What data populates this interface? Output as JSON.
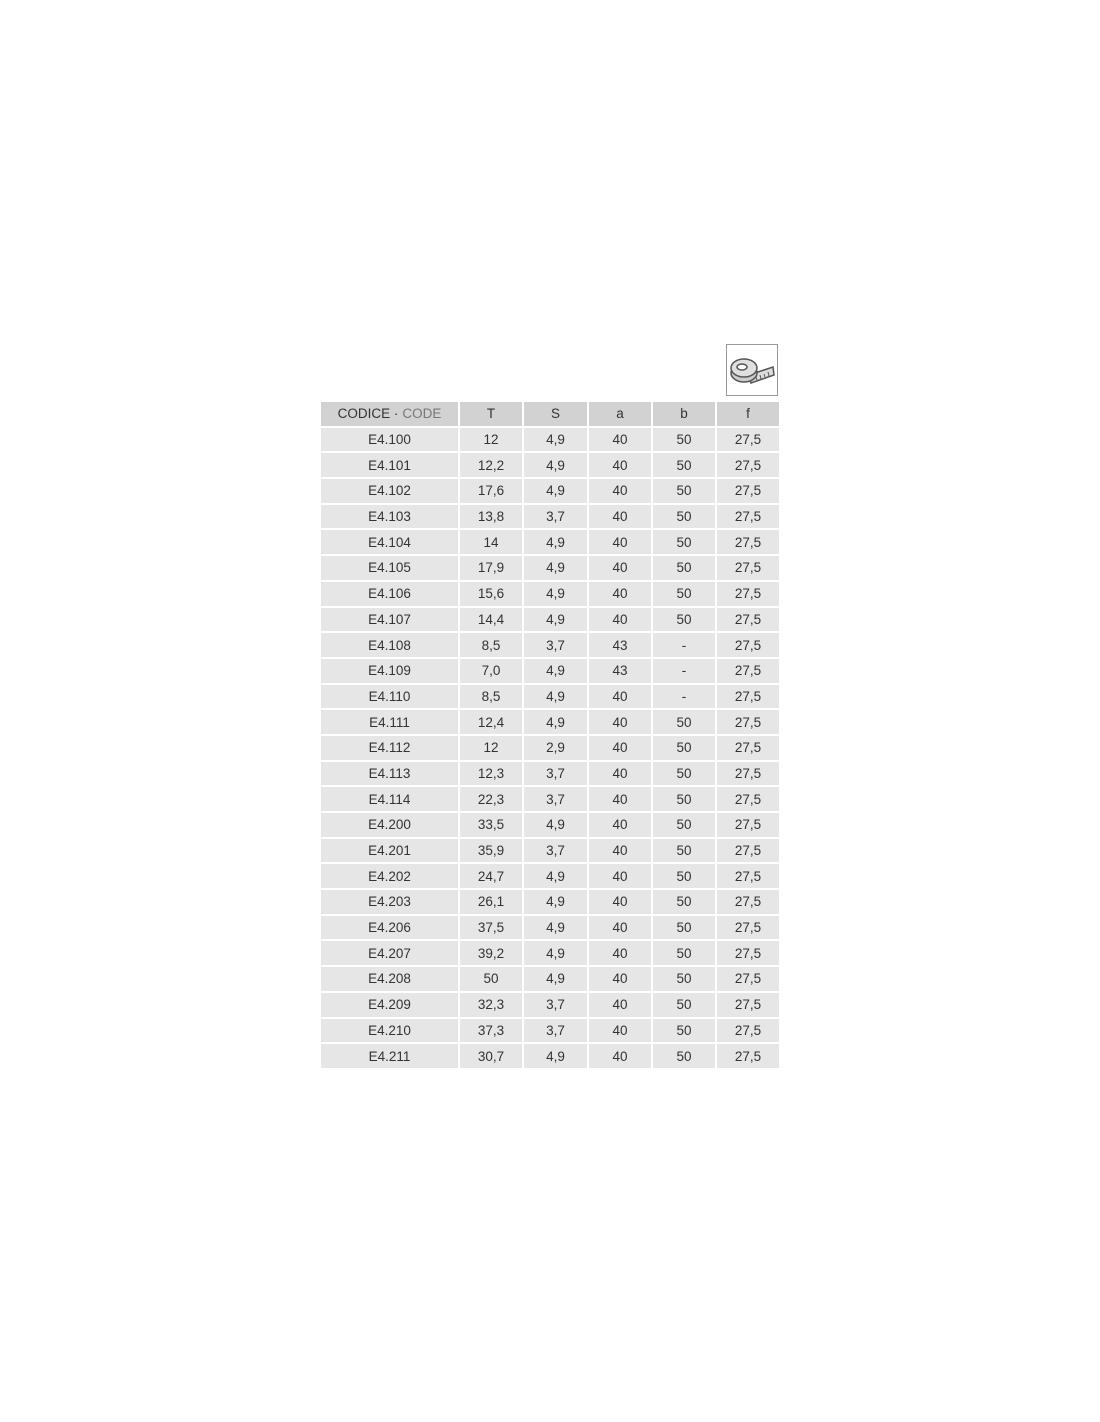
{
  "header": {
    "codice": "CODICE ·",
    "code": "CODE",
    "columns": [
      "T",
      "S",
      "a",
      "b",
      "f"
    ]
  },
  "icon": "measuring-tape-icon",
  "rows": [
    [
      "E4.100",
      "12",
      "4,9",
      "40",
      "50",
      "27,5"
    ],
    [
      "E4.101",
      "12,2",
      "4,9",
      "40",
      "50",
      "27,5"
    ],
    [
      "E4.102",
      "17,6",
      "4,9",
      "40",
      "50",
      "27,5"
    ],
    [
      "E4.103",
      "13,8",
      "3,7",
      "40",
      "50",
      "27,5"
    ],
    [
      "E4.104",
      "14",
      "4,9",
      "40",
      "50",
      "27,5"
    ],
    [
      "E4.105",
      "17,9",
      "4,9",
      "40",
      "50",
      "27,5"
    ],
    [
      "E4.106",
      "15,6",
      "4,9",
      "40",
      "50",
      "27,5"
    ],
    [
      "E4.107",
      "14,4",
      "4,9",
      "40",
      "50",
      "27,5"
    ],
    [
      "E4.108",
      "8,5",
      "3,7",
      "43",
      "-",
      "27,5"
    ],
    [
      "E4.109",
      "7,0",
      "4,9",
      "43",
      "-",
      "27,5"
    ],
    [
      "E4.110",
      "8,5",
      "4,9",
      "40",
      "-",
      "27,5"
    ],
    [
      "E4.111",
      "12,4",
      "4,9",
      "40",
      "50",
      "27,5"
    ],
    [
      "E4.112",
      "12",
      "2,9",
      "40",
      "50",
      "27,5"
    ],
    [
      "E4.113",
      "12,3",
      "3,7",
      "40",
      "50",
      "27,5"
    ],
    [
      "E4.114",
      "22,3",
      "3,7",
      "40",
      "50",
      "27,5"
    ],
    [
      "E4.200",
      "33,5",
      "4,9",
      "40",
      "50",
      "27,5"
    ],
    [
      "E4.201",
      "35,9",
      "3,7",
      "40",
      "50",
      "27,5"
    ],
    [
      "E4.202",
      "24,7",
      "4,9",
      "40",
      "50",
      "27,5"
    ],
    [
      "E4.203",
      "26,1",
      "4,9",
      "40",
      "50",
      "27,5"
    ],
    [
      "E4.206",
      "37,5",
      "4,9",
      "40",
      "50",
      "27,5"
    ],
    [
      "E4.207",
      "39,2",
      "4,9",
      "40",
      "50",
      "27,5"
    ],
    [
      "E4.208",
      "50",
      "4,9",
      "40",
      "50",
      "27,5"
    ],
    [
      "E4.209",
      "32,3",
      "3,7",
      "40",
      "50",
      "27,5"
    ],
    [
      "E4.210",
      "37,3",
      "3,7",
      "40",
      "50",
      "27,5"
    ],
    [
      "E4.211",
      "30,7",
      "4,9",
      "40",
      "50",
      "27,5"
    ]
  ]
}
